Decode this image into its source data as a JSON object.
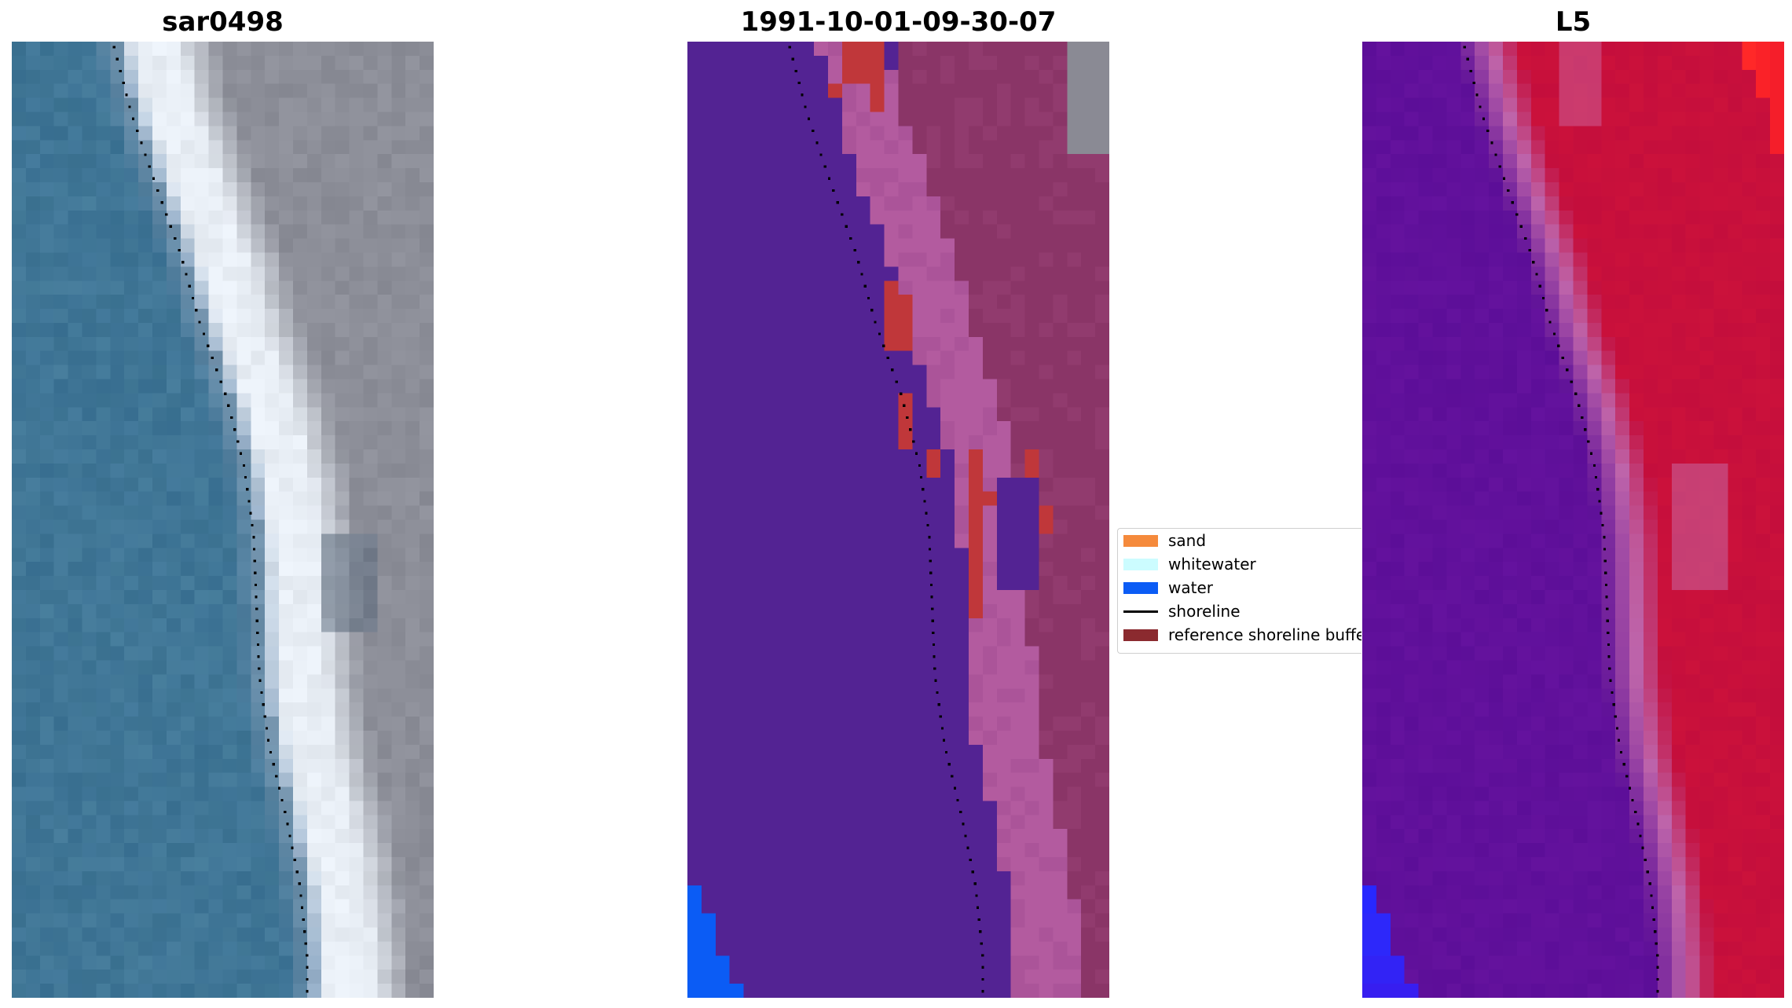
{
  "panels": [
    {
      "title": "sar0498",
      "kind": "rgb"
    },
    {
      "title": "1991-10-01-09-30-07",
      "kind": "classification"
    },
    {
      "title": "L5",
      "kind": "index"
    }
  ],
  "legend": {
    "items": [
      {
        "label": "sand",
        "color": "#f58a3c",
        "type": "patch"
      },
      {
        "label": "whitewater",
        "color": "#ccfcff",
        "type": "patch"
      },
      {
        "label": "water",
        "color": "#0b5cf5",
        "type": "patch"
      },
      {
        "label": "shoreline",
        "color": "#000000",
        "type": "line"
      },
      {
        "label": "reference shoreline buffer",
        "color": "#8b2a2f",
        "type": "patch"
      }
    ]
  },
  "colors": {
    "sea": "#3f7598",
    "beach_white": "#e8eef5",
    "land_gray": "#8d8f99",
    "class_water_purple": "#532393",
    "class_buffer_pink": "#b35b9f",
    "class_land_maroon": "#8a3567",
    "class_red": "#c0373a",
    "index_low": "#5a0d98",
    "index_high": "#c20d3c"
  }
}
